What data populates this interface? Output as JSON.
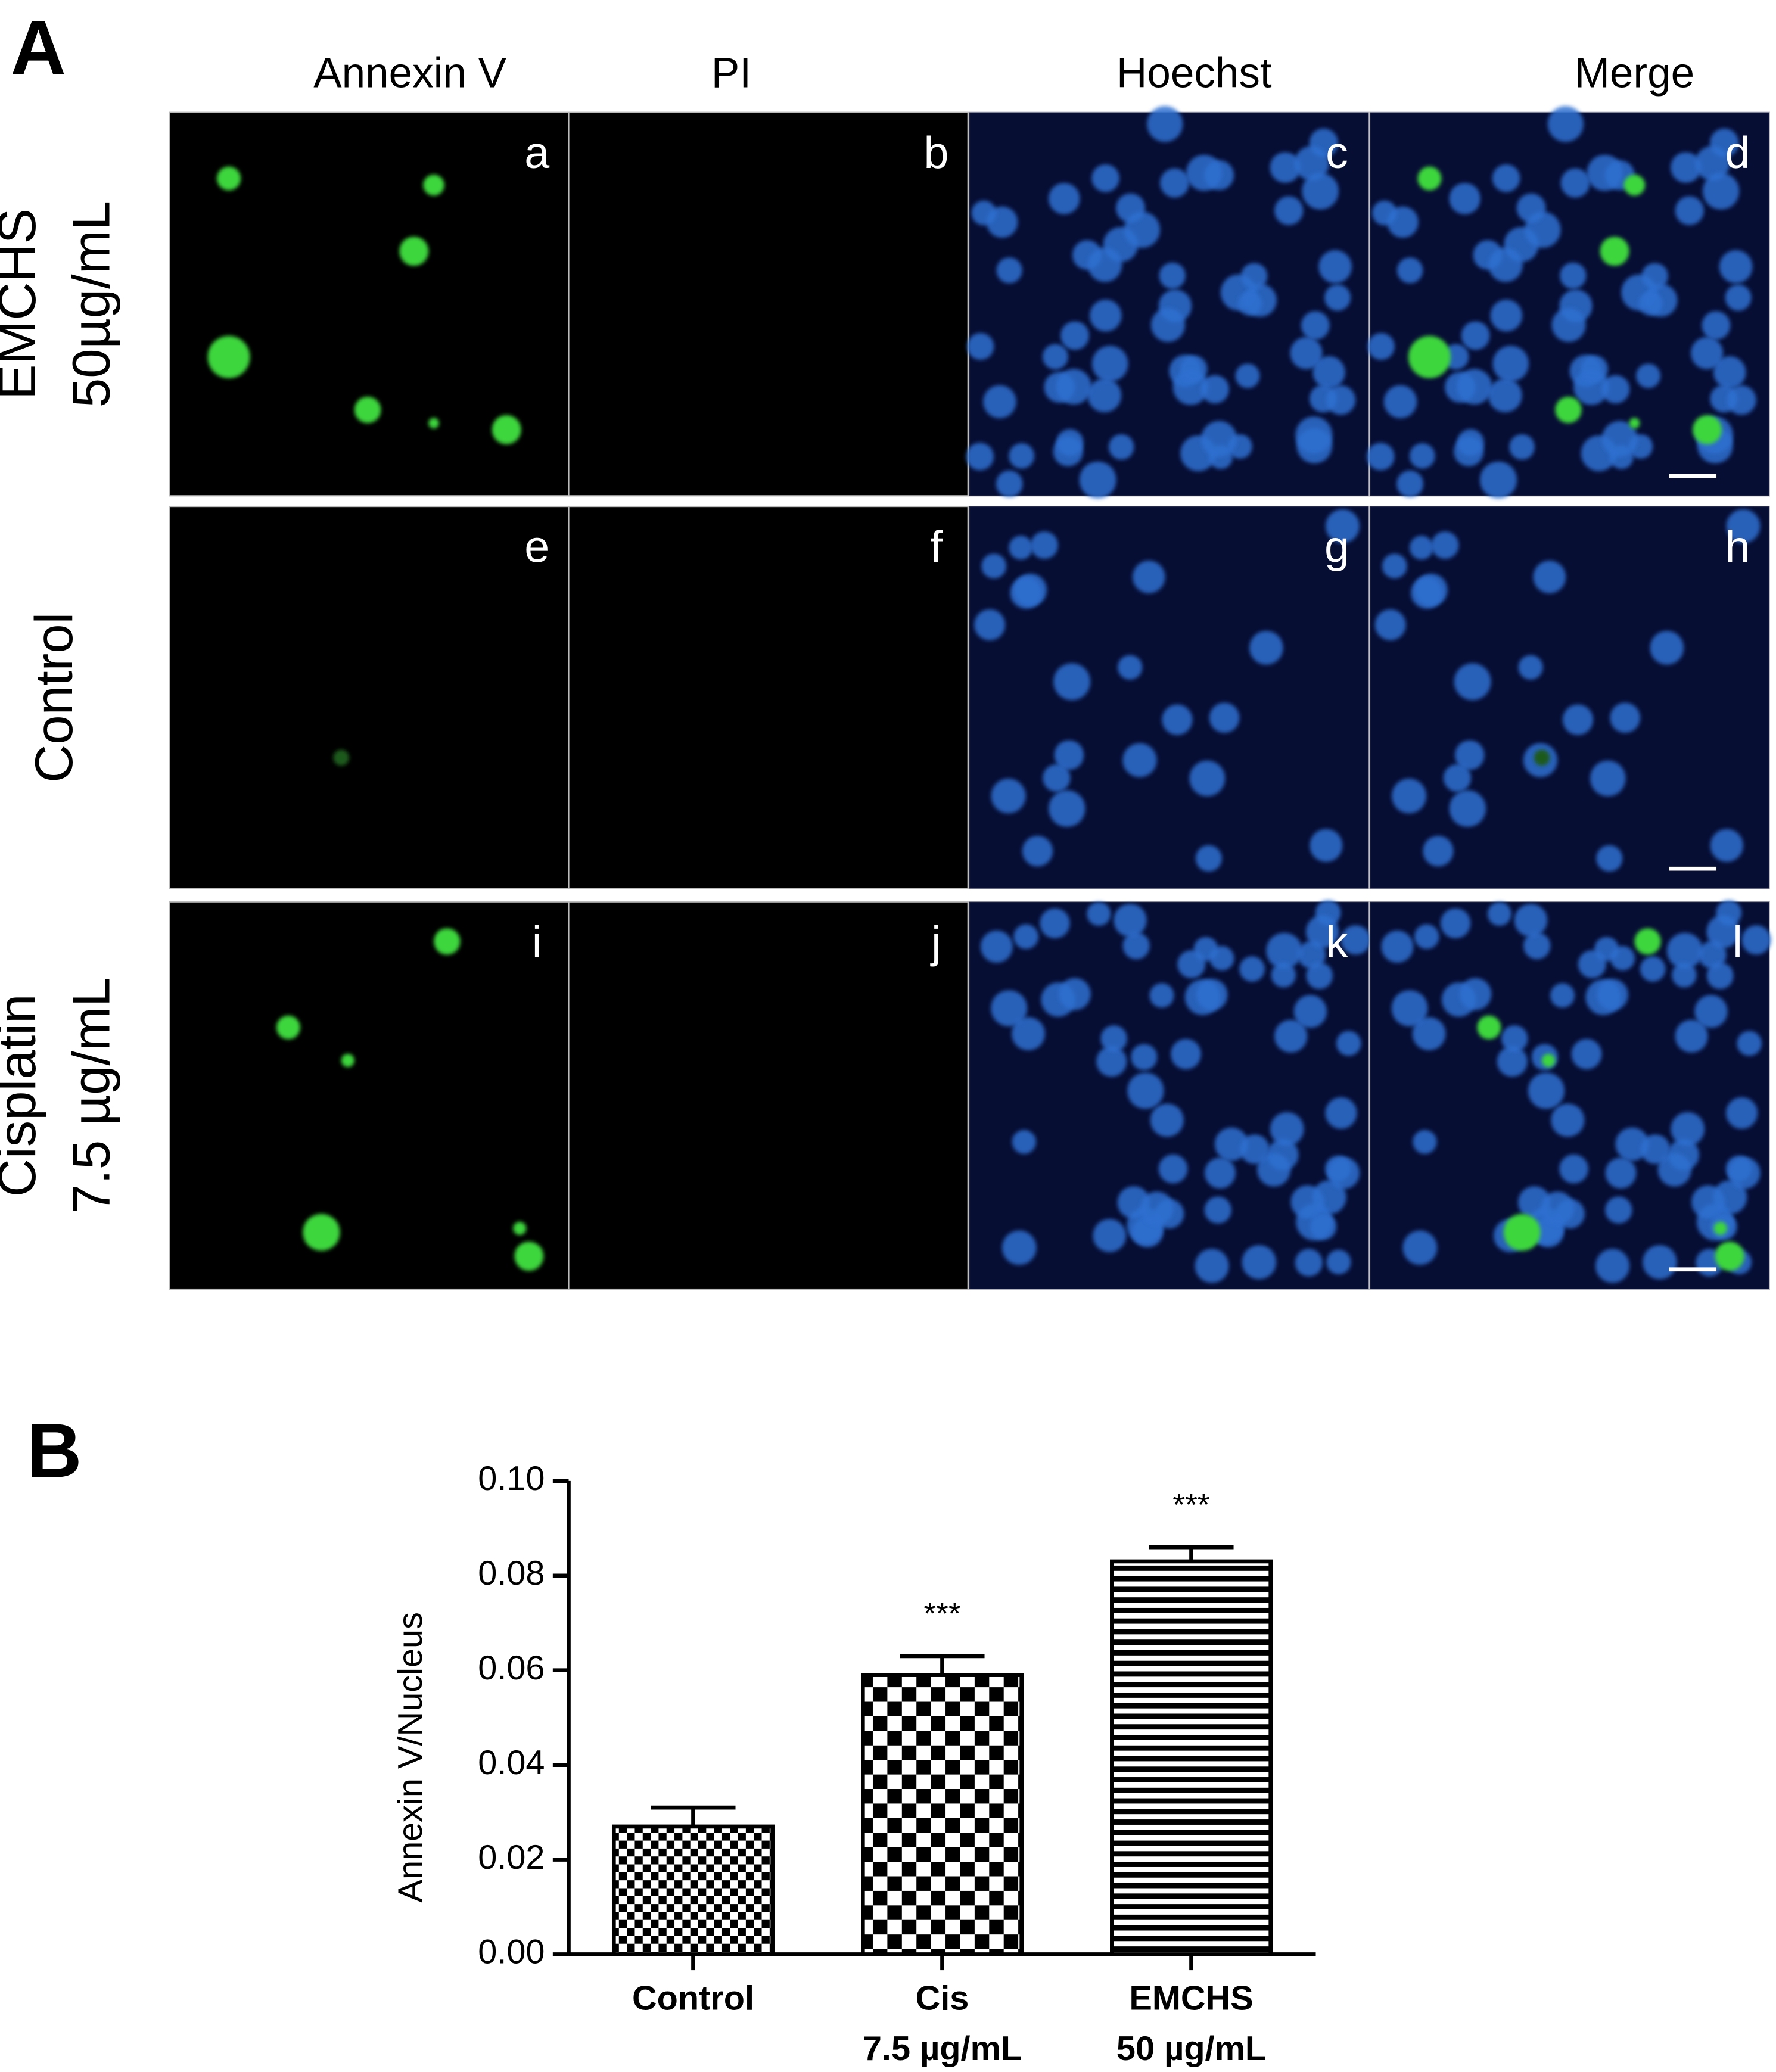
{
  "panel_a": {
    "label": "A",
    "columns": [
      "Annexin  V",
      "PI",
      "Hoechst",
      "Merge"
    ],
    "rows": [
      [
        "EMCHS",
        "50µg/mL"
      ],
      [
        "Control"
      ],
      [
        "Cisplatin",
        "7.5 µg/mL"
      ]
    ],
    "panel_letters": [
      [
        "a",
        "b",
        "c",
        "d"
      ],
      [
        "e",
        "f",
        "g",
        "h"
      ],
      [
        "i",
        "j",
        "k",
        "l"
      ]
    ]
  },
  "chart_data": {
    "type": "bar",
    "panel_label": "B",
    "y_label": "Annexin V/Nucleus",
    "categories": [
      [
        "Control"
      ],
      [
        "Cis",
        "7.5 µg/mL"
      ],
      [
        "EMCHS",
        "50 µg/mL"
      ]
    ],
    "values": [
      0.027,
      0.059,
      0.083
    ],
    "errors": [
      0.004,
      0.004,
      0.003
    ],
    "significance": [
      null,
      "***",
      "***"
    ],
    "patterns": [
      "checker-small",
      "checker-large",
      "stripes-horizontal"
    ],
    "color": "#000000",
    "ylim": [
      0,
      0.1
    ],
    "yticks": [
      {
        "value": 0,
        "label": "0.00"
      },
      0.02,
      0.04,
      0.06,
      0.08,
      {
        "value": 0.1,
        "label": "0.10"
      }
    ]
  }
}
